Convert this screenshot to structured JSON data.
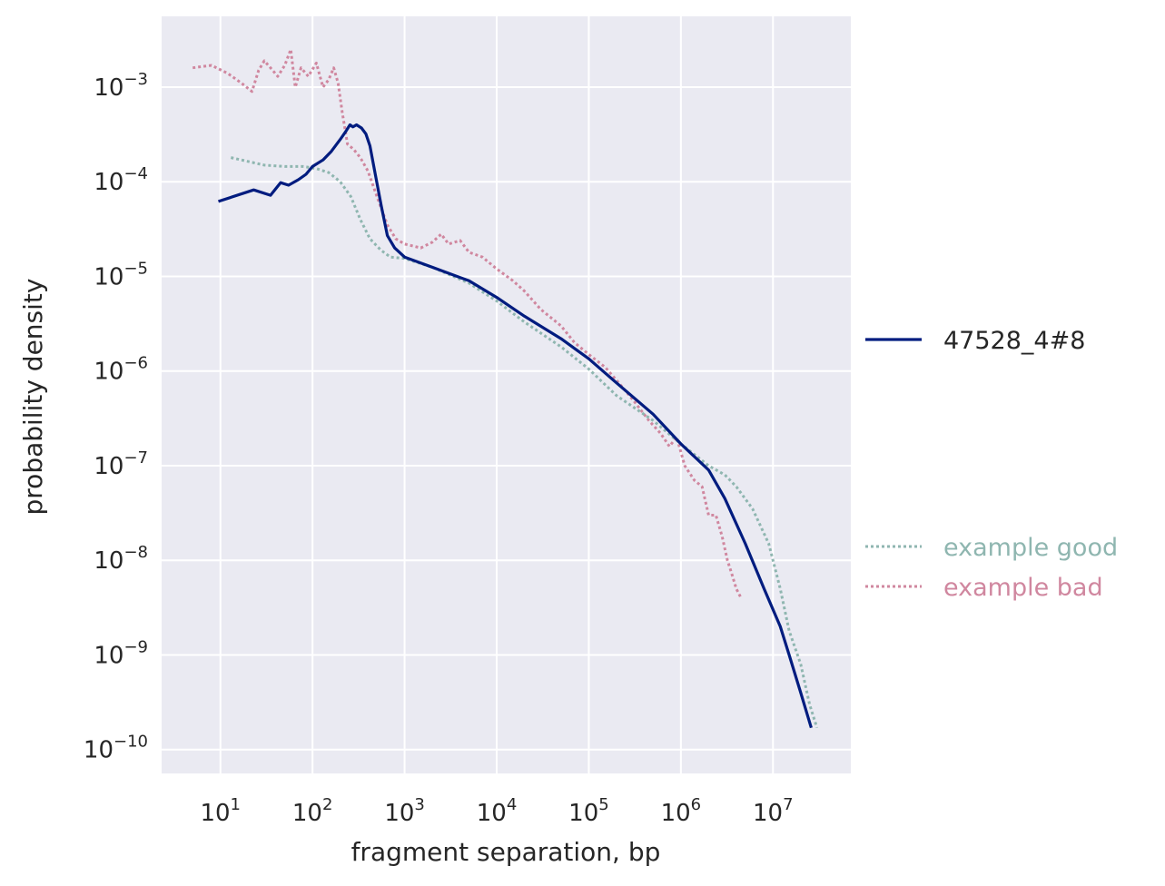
{
  "chart_data": {
    "type": "line",
    "title": "",
    "xlabel": "fragment separation, bp",
    "ylabel": "probability density",
    "xscale": "log",
    "yscale": "log",
    "xlim": [
      2.3,
      70000000
    ],
    "ylim": [
      5.6e-11,
      0.0056
    ],
    "grid": true,
    "background": "#EAEAF2",
    "x_ticks": [
      {
        "exp": 1,
        "label_base": "10",
        "label_exp": "1"
      },
      {
        "exp": 2,
        "label_base": "10",
        "label_exp": "2"
      },
      {
        "exp": 3,
        "label_base": "10",
        "label_exp": "3"
      },
      {
        "exp": 4,
        "label_base": "10",
        "label_exp": "4"
      },
      {
        "exp": 5,
        "label_base": "10",
        "label_exp": "5"
      },
      {
        "exp": 6,
        "label_base": "10",
        "label_exp": "6"
      },
      {
        "exp": 7,
        "label_base": "10",
        "label_exp": "7"
      }
    ],
    "y_ticks": [
      {
        "exp": -3,
        "label_base": "10",
        "label_exp": "−3"
      },
      {
        "exp": -4,
        "label_base": "10",
        "label_exp": "−4"
      },
      {
        "exp": -5,
        "label_base": "10",
        "label_exp": "−5"
      },
      {
        "exp": -6,
        "label_base": "10",
        "label_exp": "−6"
      },
      {
        "exp": -7,
        "label_base": "10",
        "label_exp": "−7"
      },
      {
        "exp": -8,
        "label_base": "10",
        "label_exp": "−8"
      },
      {
        "exp": -9,
        "label_base": "10",
        "label_exp": "−9"
      },
      {
        "exp": -10,
        "label_base": "10",
        "label_exp": "−10"
      }
    ],
    "series": [
      {
        "name": "47528_4#8",
        "color": "#001c7f",
        "style": "solid",
        "legend_group": "top",
        "x": [
          9.5,
          23,
          35,
          45,
          55,
          70,
          85,
          100,
          130,
          160,
          200,
          230,
          255,
          275,
          300,
          340,
          380,
          420,
          480,
          560,
          650,
          780,
          1000,
          2000,
          5000,
          10000,
          20000,
          50000,
          100000,
          200000,
          500000,
          1000000,
          2000000,
          3000000,
          5000000,
          8000000,
          12000000,
          15000000,
          20000000,
          26000000
        ],
        "y": [
          6.2e-05,
          8.2e-05,
          7.2e-05,
          9.8e-05,
          9.2e-05,
          0.000105,
          0.00012,
          0.000145,
          0.00017,
          0.00021,
          0.00028,
          0.00034,
          0.0004,
          0.00038,
          0.0004,
          0.00037,
          0.00032,
          0.00024,
          0.00012,
          5.5e-05,
          2.7e-05,
          2e-05,
          1.6e-05,
          1.25e-05,
          9e-06,
          6e-06,
          3.8e-06,
          2.2e-06,
          1.35e-06,
          7.5e-07,
          3.5e-07,
          1.7e-07,
          9e-08,
          4.5e-08,
          1.5e-08,
          5e-09,
          2e-09,
          1e-09,
          4e-10,
          1.7e-10
        ]
      },
      {
        "name": "example good",
        "color": "#8fb6b0",
        "style": "dotted",
        "legend_group": "bottom",
        "x": [
          13,
          30,
          50,
          80,
          110,
          150,
          200,
          260,
          330,
          420,
          550,
          700,
          1000,
          2000,
          5000,
          10000,
          20000,
          50000,
          100000,
          200000,
          500000,
          1000000,
          2000000,
          3000000,
          4000000,
          6000000,
          9000000,
          12000000,
          15000000,
          20000000,
          25000000,
          30000000
        ],
        "y": [
          0.00018,
          0.00015,
          0.000145,
          0.000145,
          0.000138,
          0.000125,
          0.0001,
          7e-05,
          4e-05,
          2.5e-05,
          1.9e-05,
          1.6e-05,
          1.55e-05,
          1.25e-05,
          8.5e-06,
          5.5e-06,
          3.3e-06,
          1.8e-06,
          1.05e-06,
          5.5e-07,
          3e-07,
          1.7e-07,
          1e-07,
          8e-08,
          6e-08,
          3.5e-08,
          1.5e-08,
          5e-09,
          1.8e-09,
          8e-10,
          3e-10,
          1.7e-10
        ]
      },
      {
        "name": "example bad",
        "color": "#d0879f",
        "style": "dotted",
        "legend_group": "bottom",
        "x": [
          5,
          8,
          12,
          17,
          22,
          26,
          30,
          35,
          42,
          50,
          58,
          65,
          75,
          90,
          110,
          130,
          150,
          170,
          190,
          210,
          240,
          280,
          330,
          400,
          500,
          650,
          800,
          1000,
          1500,
          2000,
          2500,
          3000,
          4000,
          5000,
          7000,
          10000,
          15000,
          20000,
          30000,
          50000,
          70000,
          100000,
          150000,
          200000,
          300000,
          450000,
          600000,
          750000,
          900000,
          1100000,
          1400000,
          1700000,
          2000000,
          2400000,
          2800000,
          3200000,
          3600000,
          4000000,
          4500000
        ],
        "y": [
          0.0016,
          0.0017,
          0.0014,
          0.0011,
          0.0009,
          0.0015,
          0.0019,
          0.0016,
          0.0013,
          0.0017,
          0.0025,
          0.001,
          0.0016,
          0.0013,
          0.0018,
          0.001,
          0.0012,
          0.0016,
          0.0011,
          0.00055,
          0.00025,
          0.00022,
          0.00018,
          0.00013,
          7e-05,
          3.5e-05,
          2.5e-05,
          2.2e-05,
          2e-05,
          2.3e-05,
          2.8e-05,
          2.2e-05,
          2.4e-05,
          1.8e-05,
          1.6e-05,
          1.2e-05,
          9e-06,
          7e-06,
          4.5e-06,
          3e-06,
          2e-06,
          1.5e-06,
          1.1e-06,
          8e-07,
          5e-07,
          3e-07,
          2.2e-07,
          1.6e-07,
          2e-07,
          1e-07,
          7e-08,
          6e-08,
          3e-08,
          3e-08,
          1.8e-08,
          1e-08,
          7e-09,
          5e-09,
          4e-09
        ]
      }
    ],
    "legend": {
      "placement": "right (outside plot)",
      "items": [
        {
          "label": "47528_4#8",
          "color": "#001c7f",
          "style": "solid"
        },
        {
          "label": "example good",
          "color": "#8fb6b0",
          "style": "dotted"
        },
        {
          "label": "example bad",
          "color": "#d0879f",
          "style": "dotted"
        }
      ]
    }
  }
}
